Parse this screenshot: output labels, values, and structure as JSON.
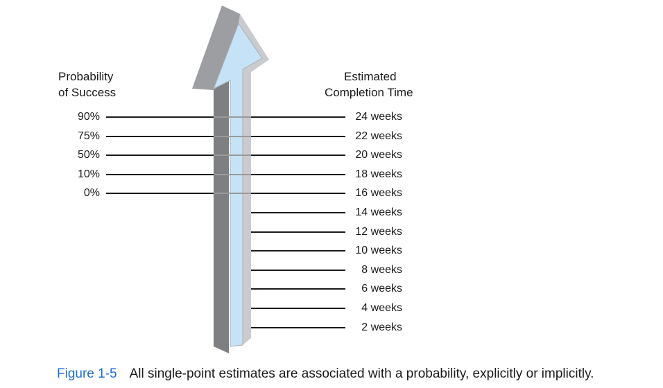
{
  "headers": {
    "probability": [
      "Probability",
      "of Success"
    ],
    "completion": [
      "Estimated",
      "Completion Time"
    ]
  },
  "probability_labels": [
    "90%",
    "75%",
    "50%",
    "10%",
    "0%"
  ],
  "completion_labels": [
    "24 weeks",
    "22 weeks",
    "20 weeks",
    "18 weeks",
    "16 weeks",
    "14 weeks",
    "12 weeks",
    "10 weeks",
    "8 weeks",
    "6 weeks",
    "4 weeks",
    "2 weeks"
  ],
  "caption": {
    "figure": "Figure 1-5",
    "text": "All single-point estimates are associated with a probability, explicitly or implicitly."
  },
  "colors": {
    "arrow_face": "#c5e2f7",
    "arrow_side": "#7d7f82",
    "arrow_edge": "#b5b7ba",
    "caption_accent": "#1f6fd1"
  }
}
